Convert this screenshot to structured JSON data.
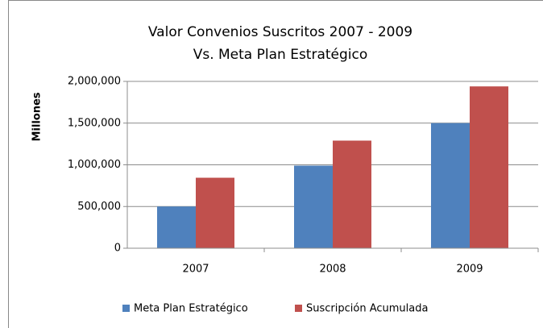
{
  "chart_data": {
    "type": "bar",
    "title": [
      "Valor Convenios Suscritos 2007  - 2009",
      "Vs. Meta Plan Estratégico"
    ],
    "y_label": "Millones",
    "categories": [
      "2007",
      "2008",
      "2009"
    ],
    "series": [
      {
        "name": "Meta Plan Estratégico",
        "color": "#4f81bd",
        "values": [
          500000,
          990000,
          1500000
        ]
      },
      {
        "name": "Suscripción Acumulada",
        "color": "#c0504d",
        "values": [
          845000,
          1290000,
          1940000
        ]
      }
    ],
    "ylim": [
      0,
      2000000
    ],
    "yticks": [
      0,
      {
        "value": 500000,
        "label": "500,000"
      },
      {
        "value": 1000000,
        "label": "1,000,000"
      },
      {
        "value": 1500000,
        "label": "1,500,000"
      },
      {
        "value": 2000000,
        "label": "2,000,000"
      }
    ],
    "grid": true,
    "legend": "bottom"
  }
}
